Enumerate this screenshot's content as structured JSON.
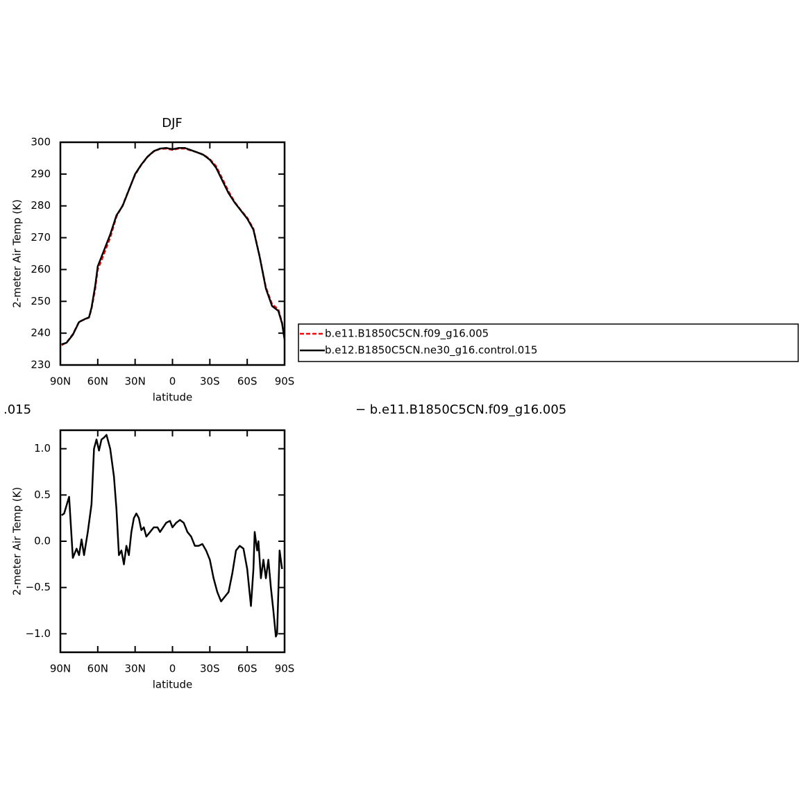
{
  "chart_data": [
    {
      "type": "line",
      "title": "DJF",
      "x_label": "latitude",
      "y_label": "2-meter Air Temp (K)",
      "xlim": [
        90,
        -90
      ],
      "xticks": [
        {
          "value": 90,
          "label": "90N"
        },
        {
          "value": 60,
          "label": "60N"
        },
        {
          "value": 30,
          "label": "30N"
        },
        0,
        {
          "value": -30,
          "label": "30S"
        },
        {
          "value": -60,
          "label": "60S"
        },
        {
          "value": -90,
          "label": "90S"
        }
      ],
      "ylim": [
        230,
        300
      ],
      "yticks": [
        230,
        240,
        250,
        260,
        270,
        280,
        290,
        300
      ],
      "x": [
        89,
        85,
        80,
        75,
        70,
        67,
        65,
        62,
        60,
        57,
        55,
        50,
        45,
        40,
        35,
        30,
        25,
        20,
        15,
        10,
        5,
        0,
        -5,
        -10,
        -15,
        -20,
        -25,
        -30,
        -35,
        -40,
        -45,
        -50,
        -55,
        -60,
        -65,
        -70,
        -75,
        -80,
        -85,
        -88,
        -90
      ],
      "series": [
        {
          "name": "b.e11.B1850C5CN.f09_g16.005",
          "color": "#ff0000",
          "line_style": "dashed",
          "values": [
            236.2,
            237.1,
            239.7,
            243.6,
            244.4,
            244.9,
            247.6,
            254,
            260,
            262.9,
            264.9,
            270,
            276.6,
            280.2,
            285.1,
            289.8,
            292.9,
            295.4,
            297.1,
            297.9,
            298.0,
            297.6,
            298.0,
            298.0,
            297.4,
            296.8,
            296.1,
            294.7,
            292.5,
            288.6,
            284.6,
            281.2,
            278.6,
            276.3,
            272.8,
            264.1,
            254.4,
            249.1,
            247.5,
            243.3,
            238
          ]
        },
        {
          "name": "b.e12.B1850C5CN.ne30_g16.control.015",
          "color": "#000000",
          "line_style": "solid",
          "values": [
            236.5,
            237,
            239.5,
            243.5,
            244.5,
            245,
            248,
            255,
            261,
            264,
            266,
            271,
            277,
            280,
            285,
            290,
            293,
            295.5,
            297.2,
            298,
            298.2,
            297.8,
            298.2,
            298.2,
            297.5,
            296.8,
            296,
            294.5,
            292,
            288,
            284,
            281,
            278.5,
            276,
            272.5,
            264,
            254,
            248.5,
            247,
            243,
            238
          ]
        }
      ]
    },
    {
      "type": "line",
      "left_string": ".015",
      "right_string": "− b.e11.B1850C5CN.f09_g16.005",
      "x_label": "latitude",
      "y_label": "2-meter Air Temp (K)",
      "xlim": [
        90,
        -90
      ],
      "xticks": [
        {
          "value": 90,
          "label": "90N"
        },
        {
          "value": 60,
          "label": "60N"
        },
        {
          "value": 30,
          "label": "30N"
        },
        0,
        {
          "value": -30,
          "label": "30S"
        },
        {
          "value": -60,
          "label": "60S"
        },
        {
          "value": -90,
          "label": "90S"
        }
      ],
      "ylim": [
        -1.2,
        1.2
      ],
      "yticks": [
        {
          "value": -1,
          "label": "−1.0"
        },
        {
          "value": -0.5,
          "label": "−0.5"
        },
        {
          "value": 0,
          "label": "0.0"
        },
        0.5,
        {
          "value": 1,
          "label": "1.0"
        }
      ],
      "x": [
        89,
        87,
        83,
        80,
        77,
        75,
        73,
        71,
        68,
        65,
        63,
        61,
        59,
        57,
        55,
        53,
        50,
        47,
        45,
        43,
        41,
        39,
        37,
        35,
        33,
        31,
        29,
        27,
        25,
        23,
        21,
        18,
        15,
        12,
        10,
        5,
        2,
        0,
        -3,
        -6,
        -9,
        -12,
        -15,
        -18,
        -21,
        -24,
        -27,
        -30,
        -33,
        -36,
        -39,
        -42,
        -45,
        -48,
        -51,
        -54,
        -57,
        -60,
        -63,
        -65,
        -66,
        -68,
        -69,
        -71,
        -73,
        -75,
        -77,
        -79,
        -81,
        -83,
        -84,
        -86,
        -88
      ],
      "color": "#000000",
      "values": [
        0.28,
        0.3,
        0.48,
        -0.18,
        -0.08,
        -0.15,
        0.02,
        -0.15,
        0.1,
        0.4,
        1.0,
        1.1,
        0.98,
        1.1,
        1.12,
        1.15,
        1.0,
        0.7,
        0.35,
        -0.15,
        -0.1,
        -0.25,
        -0.05,
        -0.15,
        0.1,
        0.25,
        0.3,
        0.25,
        0.12,
        0.15,
        0.05,
        0.1,
        0.15,
        0.15,
        0.1,
        0.2,
        0.22,
        0.15,
        0.2,
        0.23,
        0.2,
        0.1,
        0.05,
        -0.05,
        -0.05,
        -0.03,
        -0.1,
        -0.2,
        -0.4,
        -0.55,
        -0.65,
        -0.6,
        -0.55,
        -0.35,
        -0.1,
        -0.05,
        -0.08,
        -0.3,
        -0.7,
        -0.3,
        0.1,
        -0.1,
        0.0,
        -0.4,
        -0.2,
        -0.4,
        -0.2,
        -0.5,
        -0.75,
        -1.03,
        -1.0,
        -0.1,
        -0.3
      ]
    }
  ]
}
